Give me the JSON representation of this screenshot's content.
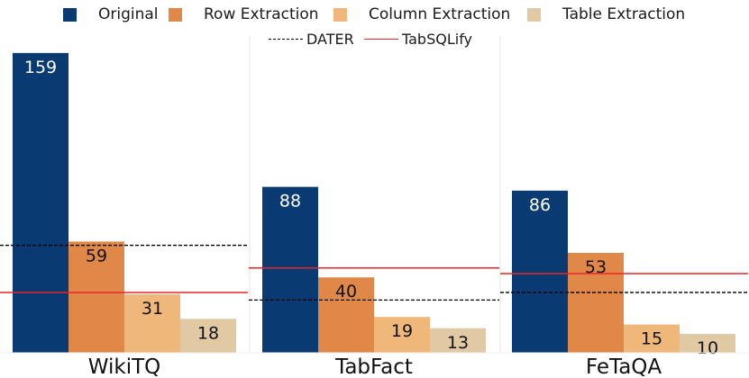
{
  "chart_data": {
    "type": "bar",
    "categories": [
      "WikiTQ",
      "TabFact",
      "FeTaQA"
    ],
    "series": [
      {
        "name": "Original",
        "color": "#0a3a72",
        "values": [
          159,
          88,
          86
        ]
      },
      {
        "name": "Row Extraction",
        "color": "#e08848",
        "values": [
          59,
          40,
          53
        ]
      },
      {
        "name": "Column Extraction",
        "color": "#efb77a",
        "values": [
          31,
          19,
          15
        ]
      },
      {
        "name": "Table Extraction",
        "color": "#e1c9a4",
        "values": [
          18,
          13,
          10
        ]
      }
    ],
    "reference_lines": [
      {
        "name": "DATER",
        "style": "dashed",
        "color": "#000000",
        "values": [
          57,
          28,
          32
        ]
      },
      {
        "name": "TabSQLify",
        "style": "solid",
        "color": "#e8252a",
        "values": [
          32,
          45,
          42
        ]
      }
    ],
    "ylim": [
      0,
      162
    ],
    "grid": false,
    "legend_position": "top"
  }
}
